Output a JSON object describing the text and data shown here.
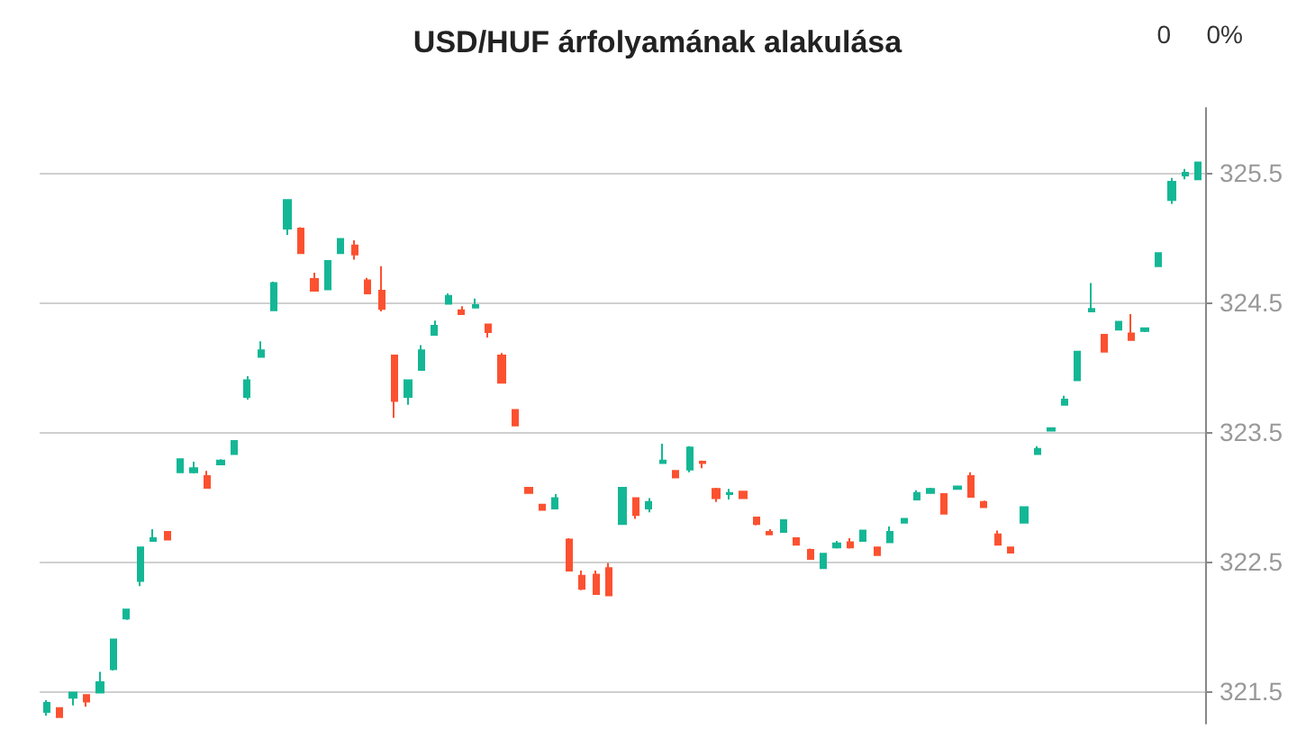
{
  "chart_data": {
    "type": "candlestick",
    "title": "USD/HUF árfolyamának alakulása",
    "annotations": [
      "0",
      "0%"
    ],
    "categories": [
      null,
      null,
      null,
      null,
      null,
      null,
      null,
      null,
      null,
      null,
      null,
      null,
      null,
      null,
      null,
      null,
      null,
      null,
      null,
      null,
      null,
      null,
      null,
      null,
      null,
      null,
      null,
      null,
      null,
      null,
      null,
      null,
      null,
      null,
      null,
      null,
      null,
      null,
      null,
      null,
      null,
      null,
      null,
      null,
      null,
      null,
      null,
      null,
      null,
      null,
      null,
      null,
      null,
      null,
      null,
      null,
      null,
      null,
      null,
      null,
      null,
      null,
      null,
      null,
      null,
      null,
      null,
      null,
      null,
      null,
      null,
      null,
      null,
      null,
      null,
      null,
      null,
      null,
      null,
      null,
      null,
      null,
      null,
      null,
      null,
      null,
      null
    ],
    "ohlc": [
      [
        321.34,
        321.43,
        321.31,
        321.41
      ],
      [
        321.37,
        321.37,
        321.3,
        321.3
      ],
      [
        321.45,
        321.49,
        321.39,
        321.49
      ],
      [
        321.47,
        321.47,
        321.38,
        321.42
      ],
      [
        321.49,
        321.65,
        321.49,
        321.57
      ],
      [
        321.67,
        321.9,
        321.66,
        321.9
      ],
      [
        322.06,
        322.13,
        322.05,
        322.13
      ],
      [
        322.35,
        322.61,
        322.31,
        322.61
      ],
      [
        322.66,
        322.75,
        322.66,
        322.68
      ],
      [
        322.73,
        322.73,
        322.67,
        322.67
      ],
      [
        323.19,
        323.29,
        323.19,
        323.29
      ],
      [
        323.19,
        323.27,
        323.18,
        323.22
      ],
      [
        323.16,
        323.2,
        323.07,
        323.07
      ],
      [
        323.25,
        323.29,
        323.25,
        323.28
      ],
      [
        323.33,
        323.43,
        323.33,
        323.43
      ],
      [
        323.77,
        323.93,
        323.75,
        323.9
      ],
      [
        324.08,
        324.2,
        324.08,
        324.13
      ],
      [
        324.44,
        324.66,
        324.44,
        324.65
      ],
      [
        325.07,
        325.29,
        325.02,
        325.29
      ],
      [
        325.07,
        325.08,
        324.88,
        324.88
      ],
      [
        324.68,
        324.73,
        324.59,
        324.59
      ],
      [
        324.6,
        324.82,
        324.6,
        324.82
      ],
      [
        324.88,
        324.99,
        324.88,
        324.99
      ],
      [
        324.94,
        324.98,
        324.83,
        324.87
      ],
      [
        324.67,
        324.69,
        324.57,
        324.57
      ],
      [
        324.59,
        324.78,
        324.43,
        324.45
      ],
      [
        324.09,
        324.09,
        323.61,
        323.74
      ],
      [
        323.77,
        323.9,
        323.71,
        323.9
      ],
      [
        323.98,
        324.17,
        323.98,
        324.13
      ],
      [
        324.25,
        324.36,
        324.25,
        324.32
      ],
      [
        324.49,
        324.57,
        324.49,
        324.55
      ],
      [
        324.44,
        324.47,
        324.41,
        324.41
      ],
      [
        324.46,
        324.53,
        324.46,
        324.48
      ],
      [
        324.33,
        324.33,
        324.23,
        324.27
      ],
      [
        324.09,
        324.11,
        323.88,
        323.88
      ],
      [
        323.67,
        323.67,
        323.55,
        323.55
      ],
      [
        323.07,
        323.07,
        323.03,
        323.03
      ],
      [
        322.94,
        322.94,
        322.9,
        322.9
      ],
      [
        322.91,
        323.02,
        322.91,
        322.99
      ],
      [
        322.67,
        322.68,
        322.43,
        322.43
      ],
      [
        322.39,
        322.43,
        322.28,
        322.29
      ],
      [
        322.4,
        322.43,
        322.25,
        322.25
      ],
      [
        322.45,
        322.49,
        322.24,
        322.24
      ],
      [
        322.79,
        323.07,
        322.79,
        323.07
      ],
      [
        322.99,
        322.99,
        322.83,
        322.86
      ],
      [
        322.91,
        322.99,
        322.88,
        322.96
      ],
      [
        323.26,
        323.41,
        323.26,
        323.28
      ],
      [
        323.2,
        323.2,
        323.15,
        323.15
      ],
      [
        323.21,
        323.39,
        323.19,
        323.38
      ],
      [
        323.27,
        323.28,
        323.22,
        323.26
      ],
      [
        323.06,
        323.07,
        322.96,
        322.99
      ],
      [
        323.02,
        323.06,
        322.98,
        323.03
      ],
      [
        323.04,
        323.04,
        322.99,
        322.99
      ],
      [
        322.84,
        322.84,
        322.78,
        322.79
      ],
      [
        322.73,
        322.75,
        322.71,
        322.71
      ],
      [
        322.73,
        322.82,
        322.73,
        322.82
      ],
      [
        322.68,
        322.68,
        322.63,
        322.63
      ],
      [
        322.59,
        322.6,
        322.52,
        322.52
      ],
      [
        322.45,
        322.56,
        322.45,
        322.56
      ],
      [
        322.61,
        322.66,
        322.6,
        322.64
      ],
      [
        322.65,
        322.68,
        322.6,
        322.61
      ],
      [
        322.66,
        322.74,
        322.66,
        322.74
      ],
      [
        322.61,
        322.61,
        322.55,
        322.55
      ],
      [
        322.65,
        322.77,
        322.65,
        322.73
      ],
      [
        322.8,
        322.83,
        322.8,
        322.83
      ],
      [
        322.98,
        323.05,
        322.98,
        323.03
      ],
      [
        323.03,
        323.07,
        323.03,
        323.06
      ],
      [
        323.02,
        323.02,
        322.87,
        322.87
      ],
      [
        323.06,
        323.08,
        323.06,
        323.08
      ],
      [
        323.16,
        323.19,
        323.0,
        323.0
      ],
      [
        322.96,
        322.97,
        322.92,
        322.92
      ],
      [
        322.71,
        322.74,
        322.63,
        322.63
      ],
      [
        322.61,
        322.61,
        322.57,
        322.57
      ],
      [
        322.8,
        322.92,
        322.8,
        322.92
      ],
      [
        323.33,
        323.39,
        323.33,
        323.37
      ],
      [
        323.51,
        323.53,
        323.51,
        323.53
      ],
      [
        323.71,
        323.78,
        323.71,
        323.75
      ],
      [
        323.9,
        324.12,
        323.9,
        324.12
      ],
      [
        324.43,
        324.65,
        324.43,
        324.45
      ],
      [
        324.25,
        324.25,
        324.12,
        324.12
      ],
      [
        324.29,
        324.35,
        324.29,
        324.35
      ],
      [
        324.26,
        324.41,
        324.21,
        324.21
      ],
      [
        324.28,
        324.3,
        324.27,
        324.3
      ],
      [
        324.78,
        324.88,
        324.78,
        324.88
      ],
      [
        325.29,
        325.46,
        325.26,
        325.43
      ],
      [
        325.48,
        325.53,
        325.45,
        325.5
      ],
      [
        325.45,
        325.58,
        325.45,
        325.58
      ]
    ],
    "colors": [
      "#14b795",
      "#fc5130",
      "#14b795",
      "#fc5130",
      "#14b795",
      "#14b795",
      "#14b795",
      "#14b795",
      "#14b795",
      "#fc5130",
      "#14b795",
      "#14b795",
      "#fc5130",
      "#14b795",
      "#14b795",
      "#14b795",
      "#14b795",
      "#14b795",
      "#14b795",
      "#fc5130",
      "#fc5130",
      "#14b795",
      "#14b795",
      "#fc5130",
      "#fc5130",
      "#fc5130",
      "#fc5130",
      "#14b795",
      "#14b795",
      "#14b795",
      "#14b795",
      "#fc5130",
      "#14b795",
      "#fc5130",
      "#fc5130",
      "#fc5130",
      "#fc5130",
      "#fc5130",
      "#14b795",
      "#fc5130",
      "#fc5130",
      "#fc5130",
      "#fc5130",
      "#14b795",
      "#fc5130",
      "#14b795",
      "#14b795",
      "#fc5130",
      "#14b795",
      "#fc5130",
      "#fc5130",
      "#14b795",
      "#fc5130",
      "#fc5130",
      "#fc5130",
      "#14b795",
      "#fc5130",
      "#fc5130",
      "#14b795",
      "#14b795",
      "#fc5130",
      "#14b795",
      "#fc5130",
      "#14b795",
      "#14b795",
      "#14b795",
      "#14b795",
      "#fc5130",
      "#14b795",
      "#fc5130",
      "#fc5130",
      "#fc5130",
      "#fc5130",
      "#14b795",
      "#14b795",
      "#14b795",
      "#14b795",
      "#14b795",
      "#14b795",
      "#fc5130",
      "#14b795",
      "#fc5130",
      "#14b795",
      "#14b795",
      "#14b795",
      "#14b795",
      "#14b795"
    ],
    "ylim": [
      321.25,
      326.0
    ],
    "yticks": [
      321.5,
      322.5,
      323.5,
      324.5,
      325.5
    ],
    "grid": "y"
  }
}
